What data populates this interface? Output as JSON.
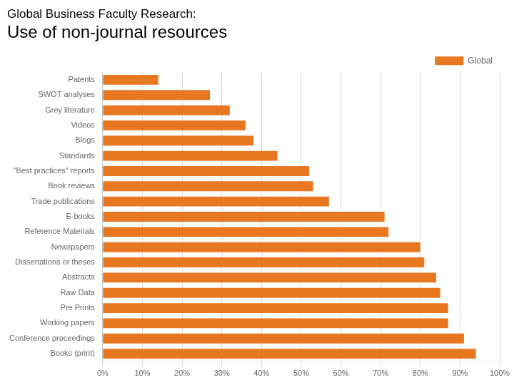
{
  "chart_data": {
    "type": "bar",
    "orientation": "horizontal",
    "title": "Global Business Faculty Research:",
    "subtitle": "Use of non-journal resources",
    "categories": [
      "Books (print)",
      "Conference proceedings",
      "Working papers",
      "Pre Prints",
      "Raw Data",
      "Abstracts",
      "Dissertations or theses",
      "Newspapers",
      "Reference Materials",
      "E-books",
      "Trade publications",
      "Book reviews",
      "\"Best practices\" reports",
      "Standards",
      "Blogs",
      "Videos",
      "Grey literature",
      "SWOT analyses",
      "Patents"
    ],
    "series": [
      {
        "name": "Global",
        "color": "#E87722",
        "values": [
          0.94,
          0.91,
          0.87,
          0.87,
          0.85,
          0.84,
          0.81,
          0.8,
          0.72,
          0.71,
          0.57,
          0.53,
          0.52,
          0.44,
          0.38,
          0.36,
          0.32,
          0.27,
          0.14
        ]
      }
    ],
    "xlim": [
      0,
      1.0
    ],
    "xticks": [
      {
        "value": 0.0,
        "label": "0%"
      },
      {
        "value": 0.1,
        "label": "10%"
      },
      {
        "value": 0.2,
        "label": "20%"
      },
      {
        "value": 0.3,
        "label": "30%"
      },
      {
        "value": 0.4,
        "label": "40%"
      },
      {
        "value": 0.5,
        "label": "50%"
      },
      {
        "value": 0.6,
        "label": "60%"
      },
      {
        "value": 0.7,
        "label": "70%"
      },
      {
        "value": 0.8,
        "label": "80%"
      },
      {
        "value": 0.9,
        "label": "90%"
      },
      {
        "value": 1.0,
        "label": "100%"
      }
    ],
    "grid": true,
    "legend": "upper right"
  }
}
